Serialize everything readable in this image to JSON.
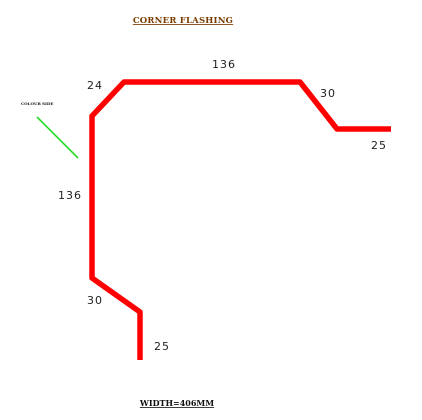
{
  "title": "CORNER FLASHING",
  "colour_side_label": "COLOUR SIDE",
  "width_label": "WIDTH=406MM",
  "dimensions": {
    "top_left_bevel": "24",
    "top": "136",
    "top_right_slope": "30",
    "right_leg": "25",
    "left_vertical": "136",
    "bottom_slope": "30",
    "bottom_leg": "25"
  },
  "colors": {
    "profile": "#ff0000",
    "colour_side_marker": "#22dd22",
    "title": "#7a3b00"
  }
}
